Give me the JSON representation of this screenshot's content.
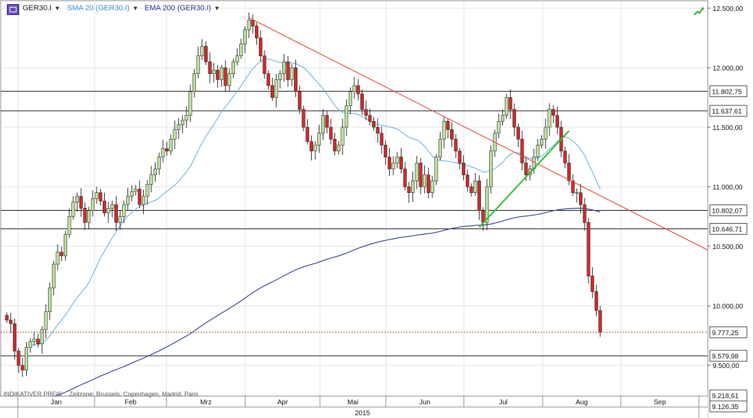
{
  "header": {
    "symbol": "GER30.I",
    "sma": "SMA 20 (GER30.I)",
    "ema": "EMA 200 (GER30.I)"
  },
  "footer": {
    "note": "INDIKATIVER PREIS",
    "timezone": "Zeitzone: Brussels, Copenhagen, Madrid, Paris"
  },
  "colors": {
    "up_candle": "#bfe3a0",
    "down_candle": "#d42a2a",
    "sma": "#6fb3e3",
    "ema": "#2f3f8f",
    "trend_red": "#e44a3a",
    "trend_green": "#2ec02e",
    "last_price_line": "#c0392b"
  },
  "chart_data": {
    "type": "candlestick",
    "year_label": "2015",
    "x_labels": [
      "Jan",
      "Feb",
      "Mrz",
      "Apr",
      "Mai",
      "Jun",
      "Jul",
      "Aug",
      "Sep"
    ],
    "y_ticks": [
      "12.500,00",
      "12.000,00",
      "11.500,00",
      "11.000,00",
      "10.500,00",
      "10.000,00",
      "9.500,00"
    ],
    "y_range": [
      9126.35,
      12500
    ],
    "horizontal_levels": [
      {
        "value": 11802.75,
        "label": "11.802,75"
      },
      {
        "value": 11637.61,
        "label": "11.637,61"
      },
      {
        "value": 10802.07,
        "label": "10.802,07"
      },
      {
        "value": 10646.71,
        "label": "10.646,71"
      },
      {
        "value": 9579.98,
        "label": "9.579,98"
      }
    ],
    "last_price": {
      "value": 9777.25,
      "label": "9.777,25"
    },
    "lower_labels": [
      "9.218,61",
      "9.126,35"
    ],
    "closes": [
      9880,
      9850,
      9620,
      9500,
      9460,
      9650,
      9700,
      9720,
      9680,
      9800,
      9950,
      10150,
      10350,
      10450,
      10420,
      10600,
      10750,
      10870,
      10920,
      10820,
      10700,
      10800,
      10900,
      10950,
      10880,
      10780,
      10820,
      10850,
      10700,
      10750,
      10850,
      10920,
      10960,
      10980,
      10850,
      10920,
      11020,
      11100,
      11150,
      11250,
      11320,
      11300,
      11400,
      11480,
      11520,
      11560,
      11600,
      11800,
      11950,
      12100,
      12180,
      12050,
      11950,
      11980,
      11900,
      12000,
      11850,
      11950,
      12050,
      12100,
      12200,
      12320,
      12400,
      12350,
      12250,
      12100,
      11950,
      11850,
      11750,
      11900,
      11950,
      12050,
      11900,
      12000,
      11800,
      11650,
      11500,
      11380,
      11300,
      11350,
      11450,
      11600,
      11500,
      11400,
      11300,
      11350,
      11500,
      11680,
      11800,
      11850,
      11780,
      11650,
      11600,
      11550,
      11500,
      11450,
      11350,
      11250,
      11150,
      11200,
      11250,
      11150,
      11000,
      10950,
      11050,
      11200,
      11000,
      11100,
      10950,
      11050,
      11250,
      11400,
      11550,
      11480,
      11400,
      11300,
      11200,
      11100,
      11000,
      10950,
      11050,
      10800,
      10700,
      11000,
      11300,
      11450,
      11550,
      11600,
      11750,
      11650,
      11500,
      11400,
      11200,
      11100,
      11150,
      11250,
      11350,
      11400,
      11500,
      11650,
      11600,
      11500,
      11300,
      11200,
      11050,
      10950,
      10950,
      10850,
      10700,
      10250,
      10120,
      9960,
      9780
    ]
  }
}
